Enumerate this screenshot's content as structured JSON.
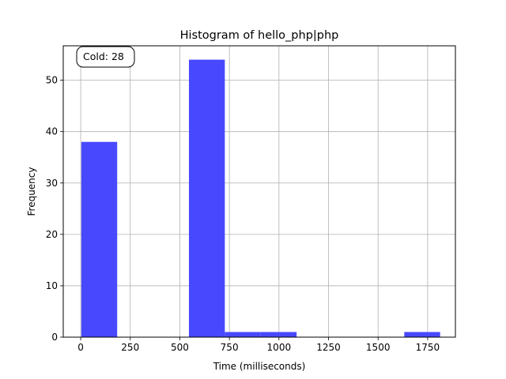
{
  "chart_data": {
    "type": "bar",
    "title": "Histogram of hello_php|php",
    "xlabel": "Time (milliseconds)",
    "ylabel": "Frequency",
    "xlim": [
      -88,
      1890
    ],
    "ylim": [
      0,
      56.7
    ],
    "xticks": [
      0,
      250,
      500,
      750,
      1000,
      1250,
      1500,
      1750
    ],
    "yticks": [
      0,
      10,
      20,
      30,
      40,
      50
    ],
    "grid": true,
    "bar_color": "#4848ff",
    "bins": [
      {
        "x0": 3,
        "x1": 184,
        "count": 38
      },
      {
        "x0": 184,
        "x1": 365,
        "count": 0
      },
      {
        "x0": 365,
        "x1": 546,
        "count": 0
      },
      {
        "x0": 546,
        "x1": 727,
        "count": 54
      },
      {
        "x0": 727,
        "x1": 908,
        "count": 1
      },
      {
        "x0": 908,
        "x1": 1089,
        "count": 1
      },
      {
        "x0": 1089,
        "x1": 1270,
        "count": 0
      },
      {
        "x0": 1270,
        "x1": 1451,
        "count": 0
      },
      {
        "x0": 1451,
        "x1": 1632,
        "count": 0
      },
      {
        "x0": 1632,
        "x1": 1813,
        "count": 1
      }
    ],
    "annotation": {
      "text": "Cold: 28",
      "placement": "top-left"
    }
  }
}
